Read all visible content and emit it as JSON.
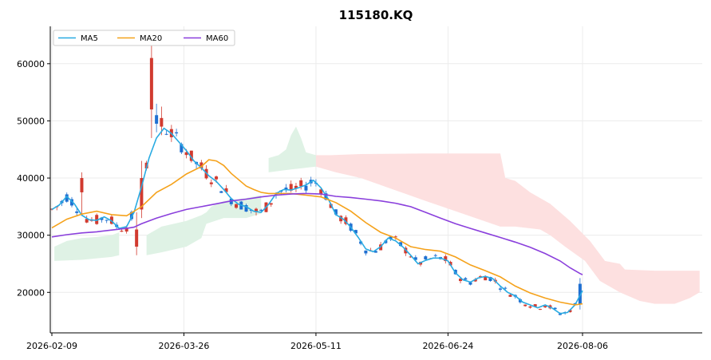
{
  "chart_data": {
    "type": "candlestick",
    "title": "115180.KQ",
    "xlabel": "",
    "ylabel": "",
    "x_tick_labels": [
      "2026-02-09",
      "2026-03-26",
      "2026-05-11",
      "2026-06-24",
      "2026-08-06"
    ],
    "y_ticks": [
      20000,
      30000,
      40000,
      50000,
      60000
    ],
    "ylim": [
      12500,
      65000
    ],
    "grid": true,
    "legend_position": "top-left",
    "colors": {
      "up": "#d13a2f",
      "down": "#1f6fd1",
      "ma5": "#29abe2",
      "ma20": "#f5a21b",
      "ma60": "#8a3fdc",
      "cloud_bull": "#dff2e5",
      "cloud_bear": "#fde0e0"
    },
    "series": [
      {
        "name": "MA5",
        "points": [
          [
            0,
            34500
          ],
          [
            3,
            35300
          ],
          [
            6,
            36800
          ],
          [
            9,
            35500
          ],
          [
            12,
            33500
          ],
          [
            15,
            32700
          ],
          [
            18,
            32600
          ],
          [
            21,
            33200
          ],
          [
            24,
            32500
          ],
          [
            27,
            31200
          ],
          [
            30,
            31500
          ],
          [
            33,
            34000
          ],
          [
            36,
            38500
          ],
          [
            39,
            43500
          ],
          [
            42,
            47000
          ],
          [
            45,
            48700
          ],
          [
            48,
            47800
          ],
          [
            51,
            46300
          ],
          [
            54,
            44800
          ],
          [
            57,
            43000
          ],
          [
            60,
            41800
          ],
          [
            63,
            40400
          ],
          [
            66,
            39400
          ],
          [
            69,
            38000
          ],
          [
            72,
            36400
          ],
          [
            75,
            35400
          ],
          [
            78,
            35000
          ],
          [
            81,
            34200
          ],
          [
            84,
            34000
          ],
          [
            87,
            35400
          ],
          [
            90,
            37300
          ],
          [
            93,
            38000
          ],
          [
            96,
            37900
          ],
          [
            99,
            38300
          ],
          [
            102,
            38800
          ],
          [
            105,
            39600
          ],
          [
            108,
            38300
          ],
          [
            111,
            36300
          ],
          [
            114,
            33600
          ],
          [
            117,
            32800
          ],
          [
            120,
            31400
          ],
          [
            123,
            29600
          ],
          [
            126,
            27600
          ],
          [
            129,
            27100
          ],
          [
            132,
            28000
          ],
          [
            135,
            29500
          ],
          [
            138,
            29000
          ],
          [
            141,
            27900
          ],
          [
            144,
            26500
          ],
          [
            147,
            25000
          ],
          [
            150,
            25600
          ],
          [
            153,
            26000
          ],
          [
            156,
            26000
          ],
          [
            159,
            25500
          ],
          [
            162,
            23400
          ],
          [
            165,
            22200
          ],
          [
            168,
            21800
          ],
          [
            171,
            22500
          ],
          [
            174,
            22800
          ],
          [
            177,
            22400
          ],
          [
            180,
            21100
          ],
          [
            183,
            20000
          ],
          [
            186,
            19400
          ],
          [
            189,
            18300
          ],
          [
            192,
            17800
          ],
          [
            195,
            17300
          ],
          [
            198,
            17800
          ],
          [
            201,
            17200
          ],
          [
            204,
            16300
          ],
          [
            207,
            16500
          ],
          [
            210,
            17800
          ],
          [
            213,
            20300
          ]
        ]
      },
      {
        "name": "MA20",
        "points": [
          [
            0,
            31300
          ],
          [
            6,
            32800
          ],
          [
            12,
            33700
          ],
          [
            18,
            34200
          ],
          [
            24,
            33600
          ],
          [
            30,
            33400
          ],
          [
            36,
            35000
          ],
          [
            42,
            37500
          ],
          [
            48,
            38900
          ],
          [
            54,
            40700
          ],
          [
            60,
            42000
          ],
          [
            63,
            43200
          ],
          [
            66,
            43000
          ],
          [
            69,
            42200
          ],
          [
            72,
            40800
          ],
          [
            75,
            39700
          ],
          [
            78,
            38600
          ],
          [
            81,
            38000
          ],
          [
            84,
            37500
          ],
          [
            87,
            37300
          ],
          [
            90,
            37300
          ],
          [
            96,
            37300
          ],
          [
            102,
            37000
          ],
          [
            108,
            36700
          ],
          [
            114,
            35700
          ],
          [
            120,
            34200
          ],
          [
            126,
            32200
          ],
          [
            132,
            30500
          ],
          [
            138,
            29500
          ],
          [
            144,
            28000
          ],
          [
            150,
            27500
          ],
          [
            156,
            27200
          ],
          [
            162,
            26200
          ],
          [
            168,
            24800
          ],
          [
            174,
            23800
          ],
          [
            180,
            22700
          ],
          [
            186,
            21100
          ],
          [
            192,
            19900
          ],
          [
            198,
            19000
          ],
          [
            204,
            18300
          ],
          [
            210,
            17800
          ],
          [
            213,
            18000
          ]
        ]
      },
      {
        "name": "MA60",
        "points": [
          [
            0,
            29700
          ],
          [
            6,
            30100
          ],
          [
            12,
            30400
          ],
          [
            18,
            30600
          ],
          [
            24,
            30900
          ],
          [
            30,
            31200
          ],
          [
            33,
            31400
          ],
          [
            36,
            32000
          ],
          [
            42,
            33000
          ],
          [
            48,
            33800
          ],
          [
            54,
            34500
          ],
          [
            60,
            35000
          ],
          [
            66,
            35500
          ],
          [
            72,
            36000
          ],
          [
            78,
            36300
          ],
          [
            84,
            36700
          ],
          [
            90,
            37000
          ],
          [
            96,
            37200
          ],
          [
            102,
            37300
          ],
          [
            108,
            37200
          ],
          [
            114,
            36800
          ],
          [
            120,
            36600
          ],
          [
            126,
            36300
          ],
          [
            132,
            36000
          ],
          [
            138,
            35600
          ],
          [
            144,
            35000
          ],
          [
            150,
            34000
          ],
          [
            156,
            33000
          ],
          [
            162,
            32000
          ],
          [
            168,
            31200
          ],
          [
            174,
            30400
          ],
          [
            180,
            29600
          ],
          [
            186,
            28800
          ],
          [
            192,
            27900
          ],
          [
            198,
            26800
          ],
          [
            204,
            25500
          ],
          [
            208,
            24300
          ],
          [
            212,
            23300
          ],
          [
            213,
            23100
          ]
        ]
      }
    ]
  }
}
